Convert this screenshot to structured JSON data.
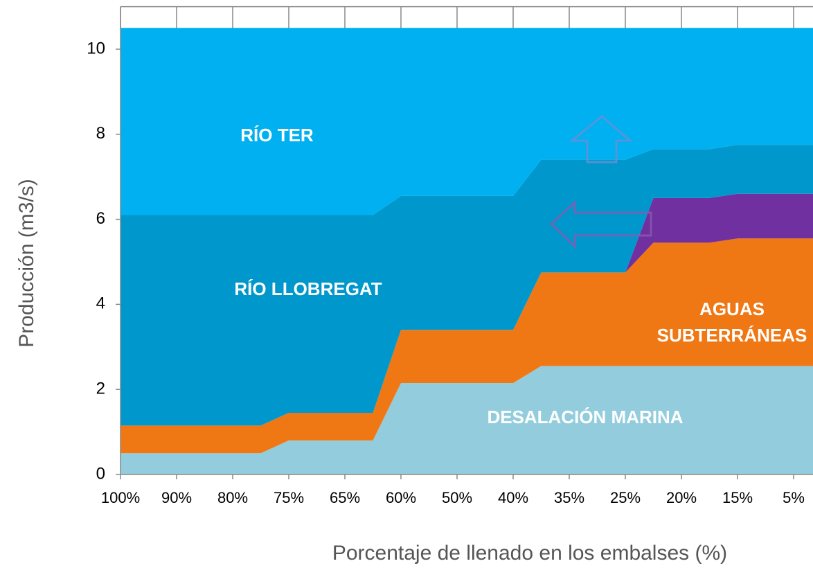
{
  "chart_data": {
    "type": "stacked_area",
    "x_label": "Porcentaje de llenado en los embalses (%)",
    "y_label": "Producción (m3/s)",
    "categories": [
      "100%",
      null,
      "90%",
      null,
      "80%",
      null,
      "75%",
      null,
      "65%",
      null,
      "60%",
      null,
      "50%",
      null,
      "40%",
      null,
      "35%",
      null,
      "25%",
      null,
      "20%",
      null,
      "15%",
      null,
      "5%",
      null
    ],
    "ylim": [
      0,
      11
    ],
    "yticks": [
      0,
      2,
      4,
      6,
      8,
      10
    ],
    "series": [
      {
        "name": "DESALACIÓN MARINA",
        "color": "#93cddd",
        "values": [
          0.5,
          0.5,
          0.5,
          0.5,
          0.5,
          0.5,
          0.8,
          0.8,
          0.8,
          0.8,
          2.15,
          2.15,
          2.15,
          2.15,
          2.15,
          2.55,
          2.55,
          2.55,
          2.55,
          2.55,
          2.55,
          2.55,
          2.55,
          2.55,
          2.55,
          2.55
        ]
      },
      {
        "name": "AGUAS SUBTERRÁNEAS",
        "color": "#f07814",
        "values": [
          0.65,
          0.65,
          0.65,
          0.65,
          0.65,
          0.65,
          0.65,
          0.65,
          0.65,
          0.65,
          1.25,
          1.25,
          1.25,
          1.25,
          1.25,
          2.2,
          2.2,
          2.2,
          2.2,
          2.9,
          2.9,
          2.9,
          3.0,
          3.0,
          3.0,
          3.0
        ]
      },
      {
        "color": "#7030a0",
        "values": [
          0,
          0,
          0,
          0,
          0,
          0,
          0,
          0,
          0,
          0,
          0,
          0,
          0,
          0,
          0,
          0,
          0,
          0,
          0,
          1.05,
          1.05,
          1.05,
          1.05,
          1.05,
          1.05,
          1.05
        ]
      },
      {
        "name": "RÍO LLOBREGAT",
        "color": "#0098cc",
        "values": [
          4.95,
          4.95,
          4.95,
          4.95,
          4.95,
          4.95,
          4.65,
          4.65,
          4.65,
          4.65,
          3.15,
          3.15,
          3.15,
          3.15,
          3.15,
          2.65,
          2.65,
          2.65,
          2.65,
          1.15,
          1.15,
          1.15,
          1.15,
          1.15,
          1.15,
          1.15
        ]
      },
      {
        "name": "RÍO TER",
        "color": "#00b0f0",
        "values": [
          4.4,
          4.4,
          4.4,
          4.4,
          4.4,
          4.4,
          4.4,
          4.4,
          4.4,
          4.4,
          3.95,
          3.95,
          3.95,
          3.95,
          3.95,
          3.1,
          3.1,
          3.1,
          3.1,
          2.85,
          2.85,
          2.85,
          2.75,
          2.75,
          2.75,
          2.75
        ]
      }
    ]
  }
}
